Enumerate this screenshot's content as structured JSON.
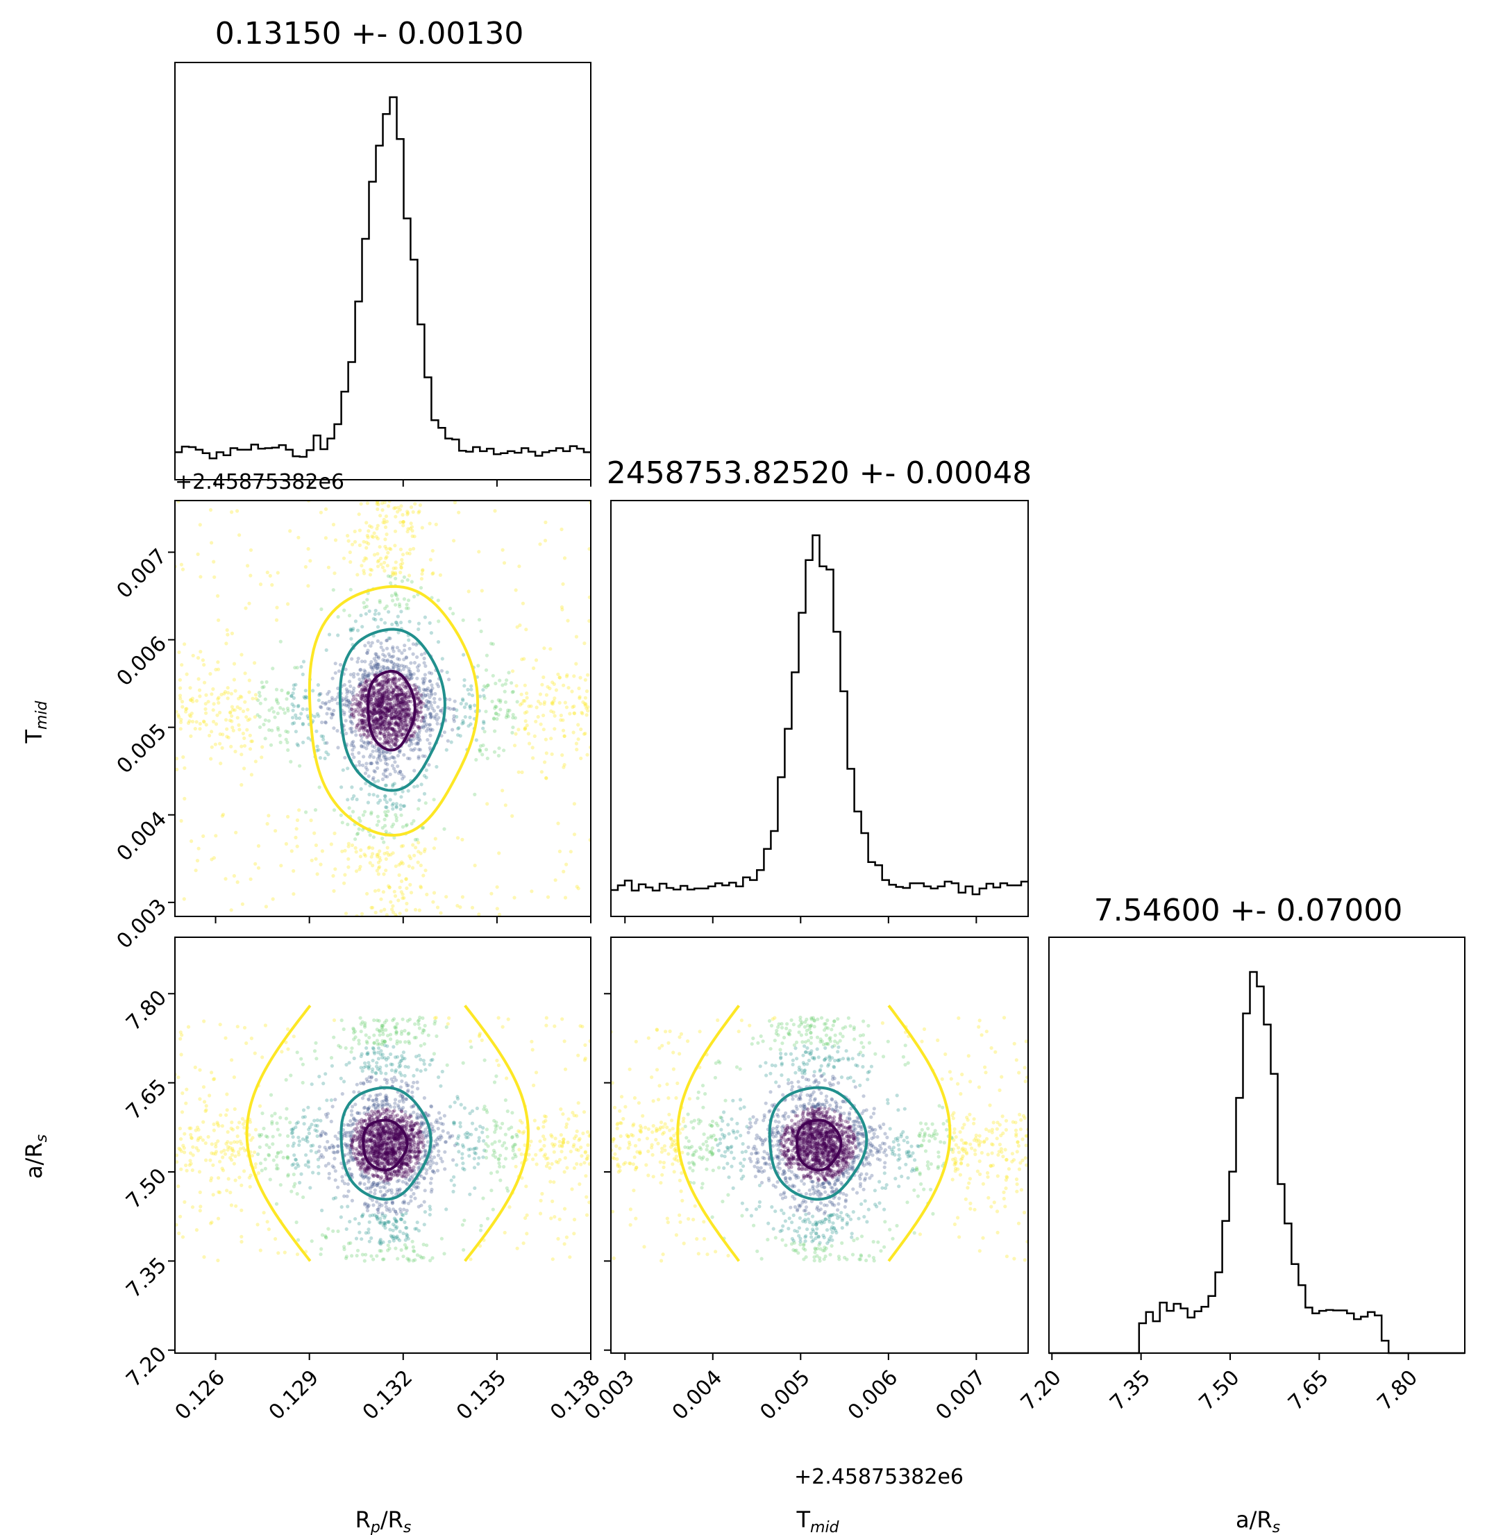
{
  "figure": {
    "type": "corner-plot",
    "params": [
      {
        "label": "R",
        "label_sub": "p",
        "label_tail": "/R",
        "label_sub2": "s"
      },
      {
        "label": "T",
        "label_sub": "mid",
        "label_tail": "",
        "label_sub2": ""
      },
      {
        "label": "a/R",
        "label_sub": "s",
        "label_tail": "",
        "label_sub2": ""
      }
    ],
    "titles": [
      "0.13150 +- 0.00130",
      "2458753.82520 +- 0.00048",
      "7.54600 +- 0.07000"
    ],
    "offset_text": "+2.45875382e6",
    "colors": {
      "line": "#000000",
      "contour_inner": "#440154",
      "contour_mid": "#21908d",
      "contour_outer": "#fde725"
    }
  },
  "chart_data": {
    "type": "corner",
    "axes": [
      {
        "param": "Rp/Rs",
        "lim": [
          0.1247,
          0.138
        ],
        "ticks": [
          0.126,
          0.129,
          0.132,
          0.135,
          0.138
        ],
        "tick_labels": [
          "0.126",
          "0.129",
          "0.132",
          "0.135",
          "0.138"
        ]
      },
      {
        "param": "Tmid (offset +2.45875382e6)",
        "lim": [
          0.00284,
          0.00759
        ],
        "ticks": [
          0.003,
          0.004,
          0.005,
          0.006,
          0.007
        ],
        "tick_labels": [
          "0.003",
          "0.004",
          "0.005",
          "0.006",
          "0.007"
        ]
      },
      {
        "param": "a/Rs",
        "lim": [
          7.195,
          7.895
        ],
        "ticks": [
          7.2,
          7.35,
          7.5,
          7.65,
          7.8
        ],
        "tick_labels": [
          "7.20",
          "7.35",
          "7.50",
          "7.65",
          "7.80"
        ]
      }
    ],
    "marginals": [
      {
        "param": "Rp/Rs",
        "median": 0.1315,
        "sigma": 0.0013
      },
      {
        "param": "Tmid",
        "median": 0.0052,
        "sigma": 0.00048
      },
      {
        "param": "a/Rs",
        "median": 7.546,
        "sigma": 0.07,
        "support": [
          7.35,
          7.76
        ]
      }
    ],
    "contours": {
      "Tmid_vs_RpRs": [
        {
          "level": "inner",
          "center": [
            0.1316,
            0.0052
          ],
          "rx": 0.00075,
          "ry": 0.00045
        },
        {
          "level": "mid",
          "center": [
            0.1316,
            0.00522
          ],
          "rx": 0.00167,
          "ry": 0.00092
        },
        {
          "level": "outer",
          "center": [
            0.1316,
            0.00522
          ],
          "rx": 0.00268,
          "ry": 0.00142
        }
      ],
      "aRs_vs_RpRs": [
        {
          "level": "inner",
          "center": [
            0.1314,
            7.546
          ],
          "rx": 0.0007,
          "ry": 0.042
        },
        {
          "level": "mid",
          "center": [
            0.1314,
            7.55
          ],
          "rx": 0.00143,
          "ry": 0.094
        }
      ],
      "aRs_vs_Tmid": [
        {
          "level": "inner",
          "center": [
            0.0052,
            7.546
          ],
          "rx": 0.00025,
          "ry": 0.042
        },
        {
          "level": "mid",
          "center": [
            0.00518,
            7.55
          ],
          "rx": 0.00055,
          "ry": 0.094
        }
      ]
    }
  }
}
